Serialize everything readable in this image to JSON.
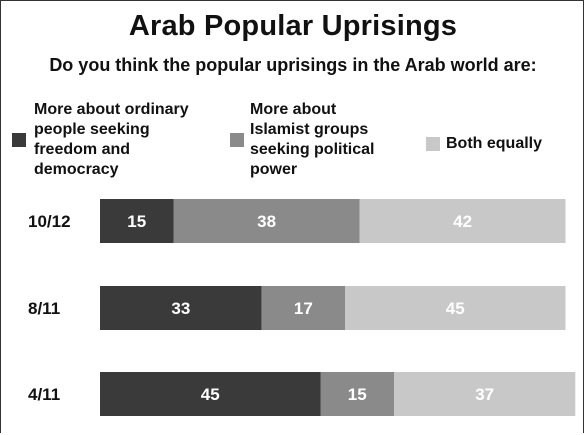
{
  "chart_data": {
    "type": "bar",
    "stacked": true,
    "orientation": "horizontal",
    "title": "Arab Popular Uprisings",
    "subtitle": "Do you think the popular uprisings in the Arab world are:",
    "categories": [
      "10/12",
      "8/11",
      "4/11"
    ],
    "series": [
      {
        "name": "More about ordinary people seeking freedom and democracy",
        "color": "#3a3a3a",
        "values": [
          15,
          33,
          45
        ]
      },
      {
        "name": "More about Islamist groups seeking political power",
        "color": "#8a8a8a",
        "values": [
          38,
          17,
          15
        ]
      },
      {
        "name": "Both equally",
        "color": "#c8c8c8",
        "values": [
          42,
          45,
          37
        ]
      }
    ],
    "legend": {
      "position": "top",
      "lines": [
        [
          "More about ordinary",
          "people seeking",
          "freedom and",
          "democracy"
        ],
        [
          "More about",
          "Islamist groups",
          "seeking political",
          "power"
        ],
        [
          "Both equally"
        ]
      ]
    },
    "grid": false
  }
}
